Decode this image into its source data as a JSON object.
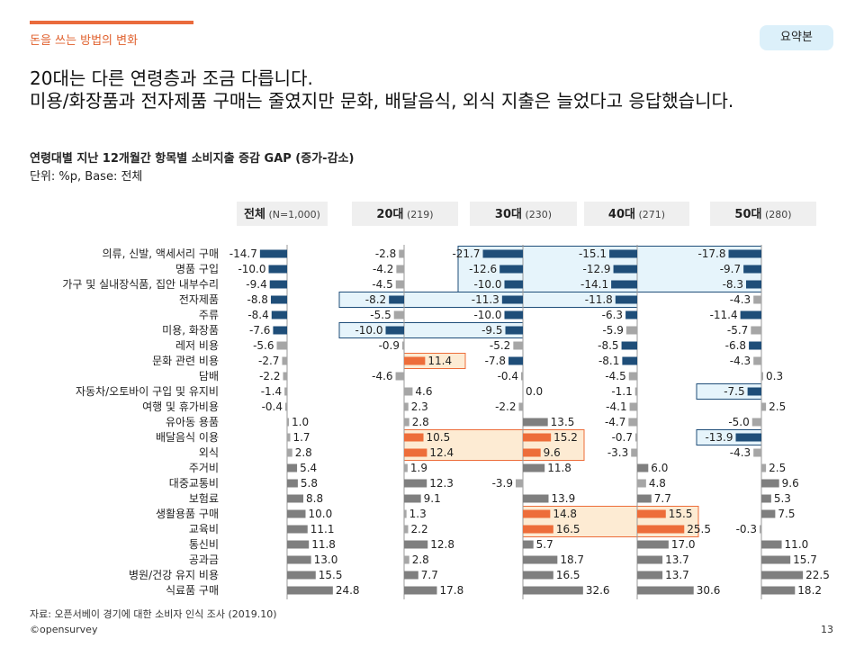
{
  "header": {
    "section": "돈을 쓰는 방법의 변화",
    "badge": "요약본"
  },
  "headline": {
    "line1": "20대는 다른 연령층과 조금 다릅니다.",
    "line2": "미용/화장품과 전자제품 구매는 줄였지만 문화, 배달음식, 외식 지출은 늘었다고 응답했습니다."
  },
  "footer": {
    "source": "자료: 오픈서베이 경기에 대한 소비자 인식 조사 (2019.10)",
    "brand": "©opensurvey",
    "page": "13"
  },
  "colors": {
    "navy": "#1f4e79",
    "gray": "#a6a6a6",
    "darkgray": "#7f7f7f",
    "orange": "#ed6d3a",
    "blue_box_fill": "#e6f4fb",
    "blue_box_stroke": "#1f4e79",
    "orange_box_fill": "#fdebd3",
    "orange_box_stroke": "#ed6d3a"
  },
  "chart_data": {
    "type": "bar",
    "orientation": "horizontal",
    "title": "연령대별 지난 12개월간 항목별 소비지출 증감 GAP (증가-감소)",
    "unit": "단위: %p, Base: 전체",
    "categories": [
      "의류, 신발, 액세서리 구매",
      "명품 구입",
      "가구 및 실내장식품, 집안 내부수리",
      "전자제품",
      "주류",
      "미용, 화장품",
      "레저 비용",
      "문화 관련 비용",
      "담배",
      "자동차/오토바이 구입 및 유지비",
      "여행 및 휴가비용",
      "유아동 용품",
      "배달음식 이용",
      "외식",
      "주거비",
      "대중교통비",
      "보험료",
      "생활용품 구매",
      "교육비",
      "통신비",
      "공과금",
      "병원/건강 유지 비용",
      "식료품 구매"
    ],
    "series": [
      {
        "name": "전체",
        "base": "(N=1,000)",
        "values": [
          -14.7,
          -10.0,
          -9.4,
          -8.8,
          -8.4,
          -7.6,
          -5.6,
          -2.7,
          -2.2,
          -1.4,
          -0.4,
          1.0,
          1.7,
          2.8,
          5.4,
          5.8,
          8.8,
          10.0,
          11.1,
          11.8,
          13.0,
          15.5,
          24.8
        ],
        "labels": [
          "-14.7",
          "-10.0",
          "-9.4",
          "-8.8",
          "-8.4",
          "-7.6",
          "-5.6",
          "-2.7",
          "-2.2",
          "-1.4",
          "-0.4",
          "1.0",
          "1.7",
          "2.8",
          "5.4",
          "5.8",
          "8.8",
          "10.0",
          "11.1",
          "11.8",
          "13.0",
          "15.5",
          "24.8"
        ]
      },
      {
        "name": "20대",
        "base": "(219)",
        "values": [
          -2.8,
          -4.2,
          -4.5,
          -8.2,
          -5.5,
          -10.0,
          -0.9,
          11.4,
          -4.6,
          4.6,
          2.3,
          2.8,
          10.5,
          12.4,
          1.9,
          12.3,
          9.1,
          1.3,
          2.2,
          12.8,
          2.8,
          7.7,
          17.8
        ],
        "labels": [
          "-2.8",
          "-4.2",
          "-4.5",
          "-8.2",
          "-5.5",
          "-10.0",
          "-0.9",
          "11.4",
          "-4.6",
          "4.6",
          "2.3",
          "2.8",
          "10.5",
          "12.4",
          "1.9",
          "12.3",
          "9.1",
          "1.3",
          "2.2",
          "12.8",
          "2.8",
          "7.7",
          "17.8"
        ]
      },
      {
        "name": "30대",
        "base": "(230)",
        "values": [
          -21.7,
          -12.6,
          -10.0,
          -11.3,
          -10.0,
          -9.5,
          -5.2,
          -7.8,
          -0.4,
          0.0,
          -2.2,
          13.5,
          15.2,
          9.6,
          11.8,
          -3.9,
          13.9,
          14.8,
          16.5,
          5.7,
          18.7,
          16.5,
          32.6
        ],
        "labels": [
          "-21.7",
          "-12.6",
          "-10.0",
          "-11.3",
          "-10.0",
          "-9.5",
          "-5.2",
          "-7.8",
          "-0.4",
          "0.0",
          "-2.2",
          "13.5",
          "15.2",
          "9.6",
          "11.8",
          "-3.9",
          "13.9",
          "14.8",
          "16.5",
          "5.7",
          "18.7",
          "16.5",
          "32.6"
        ]
      },
      {
        "name": "40대",
        "base": "(271)",
        "values": [
          -15.1,
          -12.9,
          -14.1,
          -11.8,
          -6.3,
          -5.9,
          -8.5,
          -8.1,
          -4.5,
          -1.1,
          -4.1,
          -4.7,
          -0.7,
          -3.3,
          6.0,
          4.8,
          7.7,
          15.5,
          25.5,
          17.0,
          13.7,
          13.7,
          30.6
        ],
        "labels": [
          "-15.1",
          "-12.9",
          "-14.1",
          "-11.8",
          "-6.3",
          "-5.9",
          "-8.5",
          "-8.1",
          "-4.5",
          "-1.1",
          "-4.1",
          "-4.7",
          "-0.7",
          "-3.3",
          "6.0",
          "4.8",
          "7.7",
          "15.5",
          "25.5",
          "17.0",
          "13.7",
          "13.7",
          "30.6"
        ]
      },
      {
        "name": "50대",
        "base": "(280)",
        "values": [
          -17.8,
          -9.7,
          -8.3,
          -4.3,
          -11.4,
          -5.7,
          -6.8,
          -4.3,
          0.3,
          -7.5,
          2.5,
          -5.0,
          -13.9,
          -4.3,
          2.5,
          9.6,
          5.3,
          7.5,
          -0.3,
          11.0,
          15.7,
          22.5,
          18.2
        ],
        "labels": [
          "-17.8",
          "-9.7",
          "-8.3",
          "-4.3",
          "-11.4",
          "-5.7",
          "-6.8",
          "-4.3",
          "0.3",
          "-7.5",
          "2.5",
          "-5.0",
          "-13.9",
          "-4.3",
          "2.5",
          "9.6",
          "5.3",
          "7.5",
          "-0.3",
          "11.0",
          "15.7",
          "22.5",
          "18.2"
        ]
      }
    ],
    "highlights": {
      "blue": [
        {
          "series": [
            2,
            3,
            4
          ],
          "rows": [
            0,
            2
          ]
        },
        {
          "series": [
            1,
            2,
            3
          ],
          "rows": [
            3,
            3
          ]
        },
        {
          "series": [
            1,
            2
          ],
          "rows": [
            5,
            5
          ]
        },
        {
          "series": [
            4
          ],
          "rows": [
            9,
            9
          ]
        },
        {
          "series": [
            4
          ],
          "rows": [
            12,
            12
          ]
        }
      ],
      "orange": [
        {
          "series": [
            1
          ],
          "rows": [
            7,
            7
          ]
        },
        {
          "series": [
            1,
            2
          ],
          "rows": [
            12,
            13
          ]
        },
        {
          "series": [
            2,
            3
          ],
          "rows": [
            17,
            18
          ]
        }
      ]
    }
  }
}
